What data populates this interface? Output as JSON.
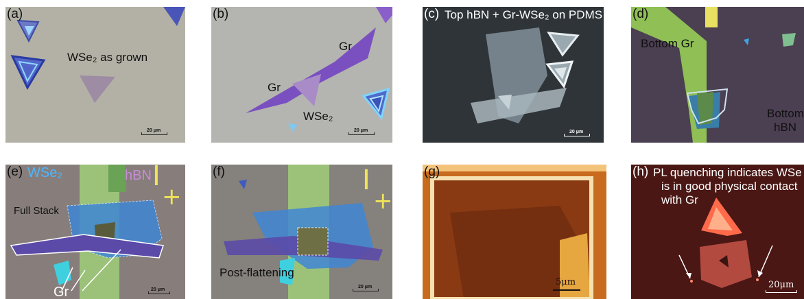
{
  "panels": {
    "a": {
      "label": "(a)",
      "annotation": "WSe₂ as grown",
      "scale": "20 μm"
    },
    "b": {
      "label": "(b)",
      "gr_top": "Gr",
      "gr_left": "Gr",
      "wse2": "WSe₂",
      "scale": "20 μm"
    },
    "c": {
      "label": "(c)",
      "title": "Top hBN + Gr-WSe₂ on PDMS",
      "scale": "20 μm"
    },
    "d": {
      "label": "(d)",
      "bottom_gr": "Bottom Gr",
      "bottom_hbn_1": "Bottom",
      "bottom_hbn_2": "hBN"
    },
    "e": {
      "label": "(e)",
      "wse2": "WSe₂",
      "hbn": "hBN",
      "full_stack": "Full Stack",
      "gr": "Gr",
      "scale": "20 μm"
    },
    "f": {
      "label": "(f)",
      "post": "Post-flattening",
      "scale": "20 μm"
    },
    "g": {
      "label": "(g)",
      "scale": "5μm"
    },
    "h": {
      "label": "(h)",
      "line1": "PL quenching indicates WSe",
      "line2": "is in good physical contact",
      "line3": "with Gr",
      "scale": "20μm"
    }
  }
}
